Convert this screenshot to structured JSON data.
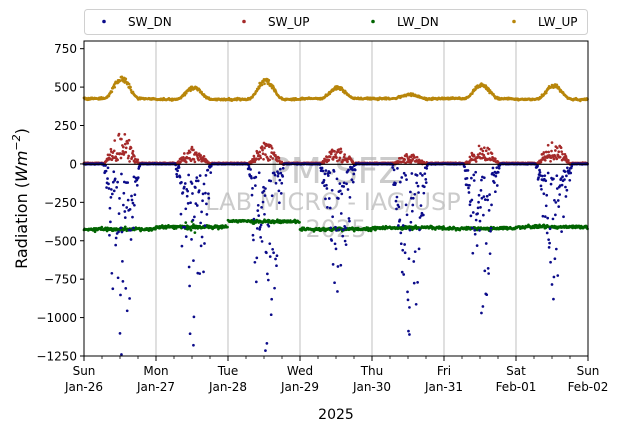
{
  "chart_data": {
    "type": "scatter",
    "xlabel": "2025",
    "ylabel_main": "Radiation (",
    "ylabel_unit_base": "Wm",
    "ylabel_unit_exp": "−2",
    "ylabel_close": ")",
    "ylim": [
      -1250,
      800
    ],
    "yticks": [
      -1250,
      -1000,
      -750,
      -500,
      -250,
      0,
      250,
      500,
      750
    ],
    "ytick_labels": [
      "−1250",
      "−1000",
      "−750",
      "−500",
      "−250",
      "0",
      "250",
      "500",
      "750"
    ],
    "xlim_days": [
      0,
      7
    ],
    "xticks": [
      {
        "day": "Sun",
        "date": "Jan-26"
      },
      {
        "day": "Mon",
        "date": "Jan-27"
      },
      {
        "day": "Tue",
        "date": "Jan-28"
      },
      {
        "day": "Wed",
        "date": "Jan-29"
      },
      {
        "day": "Thu",
        "date": "Jan-30"
      },
      {
        "day": "Fri",
        "date": "Jan-31"
      },
      {
        "day": "Sat",
        "date": "Feb-01"
      },
      {
        "day": "Sun",
        "date": "Feb-02"
      }
    ],
    "grid": "x",
    "legend_position": "top",
    "watermark": {
      "line1": "PM-SFZ",
      "line2": "LAB MICRO - IAG/USP",
      "line3": "2025"
    },
    "series": [
      {
        "name": "SW_DN",
        "color": "#0b0b8a",
        "kind": "shortwave-down",
        "night_value": 0,
        "daily_min": [
          -1240,
          -1180,
          -1215,
          -830,
          -1110,
          -970,
          -880
        ]
      },
      {
        "name": "SW_UP",
        "color": "#a52a2a",
        "kind": "shortwave-up",
        "night_value": 5,
        "daily_peak": [
          210,
          115,
          140,
          115,
          65,
          125,
          155
        ]
      },
      {
        "name": "LW_DN",
        "color": "#006400",
        "kind": "longwave-down",
        "daily_level": [
          -425,
          -410,
          -375,
          -425,
          -415,
          -420,
          -410
        ]
      },
      {
        "name": "LW_UP",
        "color": "#b8860b",
        "kind": "longwave-up",
        "daily_base": [
          425,
          420,
          420,
          425,
          425,
          425,
          420
        ],
        "daily_peak": [
          575,
          505,
          560,
          505,
          455,
          525,
          520
        ]
      }
    ]
  }
}
